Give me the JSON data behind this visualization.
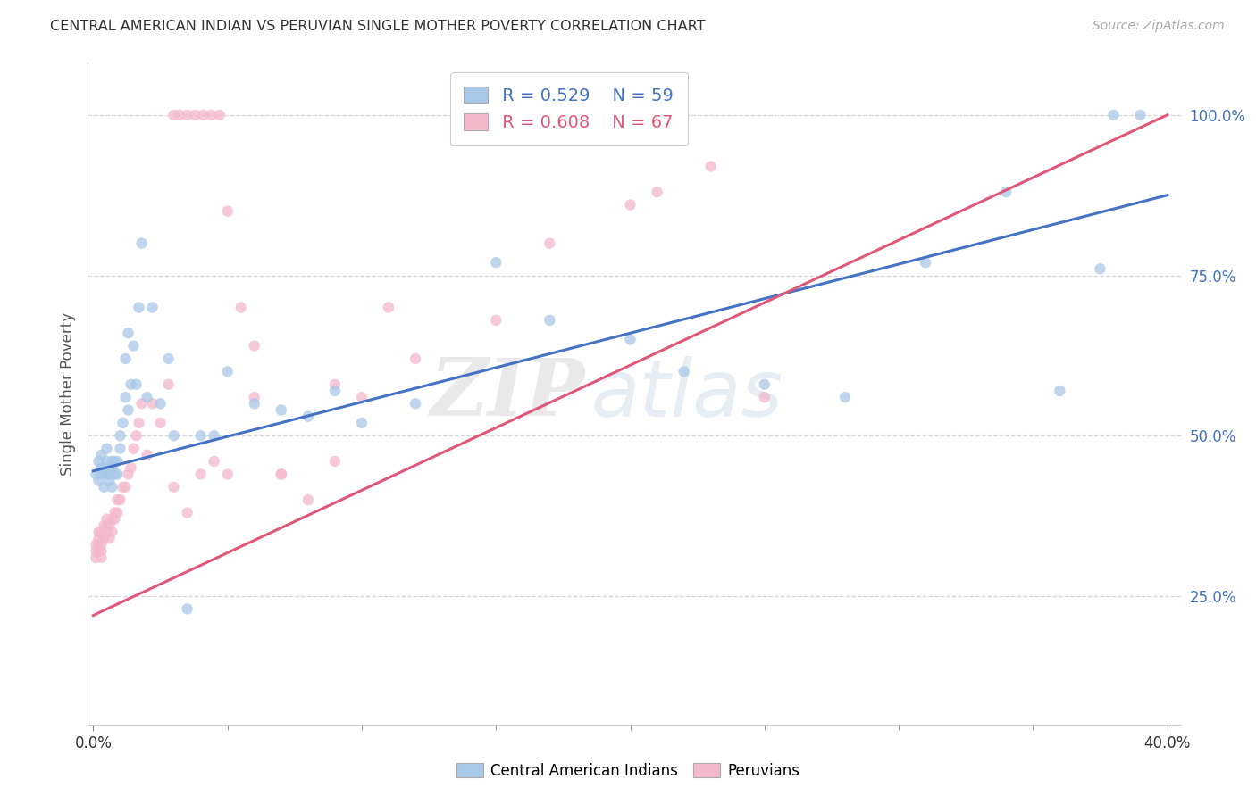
{
  "title": "CENTRAL AMERICAN INDIAN VS PERUVIAN SINGLE MOTHER POVERTY CORRELATION CHART",
  "source": "Source: ZipAtlas.com",
  "ylabel": "Single Mother Poverty",
  "ytick_labels": [
    "25.0%",
    "50.0%",
    "75.0%",
    "100.0%"
  ],
  "ytick_values": [
    0.25,
    0.5,
    0.75,
    1.0
  ],
  "xtick_labels": [
    "0.0%",
    "40.0%"
  ],
  "xtick_values": [
    0.0,
    0.4
  ],
  "xlim": [
    -0.002,
    0.405
  ],
  "ylim": [
    0.05,
    1.08
  ],
  "legend_blue_r": "R = 0.529",
  "legend_blue_n": "N = 59",
  "legend_pink_r": "R = 0.608",
  "legend_pink_n": "N = 67",
  "blue_color": "#a8c8e8",
  "pink_color": "#f4b8cb",
  "blue_line_color": "#4472c4",
  "pink_line_color": "#e05878",
  "watermark_zip": "ZIP",
  "watermark_atlas": "atlas",
  "blue_line_x0": 0.0,
  "blue_line_y0": 0.445,
  "blue_line_x1": 0.4,
  "blue_line_y1": 0.875,
  "pink_line_x0": 0.0,
  "pink_line_y0": 0.22,
  "pink_line_x1": 0.4,
  "pink_line_y1": 1.0,
  "blue_x": [
    0.001,
    0.002,
    0.002,
    0.003,
    0.003,
    0.003,
    0.004,
    0.004,
    0.005,
    0.005,
    0.005,
    0.006,
    0.006,
    0.007,
    0.007,
    0.007,
    0.008,
    0.008,
    0.009,
    0.009,
    0.01,
    0.01,
    0.011,
    0.012,
    0.012,
    0.013,
    0.013,
    0.014,
    0.015,
    0.016,
    0.017,
    0.018,
    0.02,
    0.022,
    0.025,
    0.028,
    0.03,
    0.035,
    0.04,
    0.045,
    0.05,
    0.06,
    0.07,
    0.08,
    0.09,
    0.1,
    0.12,
    0.15,
    0.17,
    0.2,
    0.22,
    0.25,
    0.28,
    0.31,
    0.34,
    0.36,
    0.375,
    0.38,
    0.39
  ],
  "blue_y": [
    0.44,
    0.43,
    0.46,
    0.44,
    0.47,
    0.45,
    0.42,
    0.45,
    0.44,
    0.48,
    0.46,
    0.43,
    0.44,
    0.42,
    0.45,
    0.46,
    0.44,
    0.46,
    0.44,
    0.46,
    0.48,
    0.5,
    0.52,
    0.56,
    0.62,
    0.54,
    0.66,
    0.58,
    0.64,
    0.58,
    0.7,
    0.8,
    0.56,
    0.7,
    0.55,
    0.62,
    0.5,
    0.23,
    0.5,
    0.5,
    0.6,
    0.55,
    0.54,
    0.53,
    0.57,
    0.52,
    0.55,
    0.77,
    0.68,
    0.65,
    0.6,
    0.58,
    0.56,
    0.77,
    0.88,
    0.57,
    0.76,
    1.0,
    1.0
  ],
  "pink_x": [
    0.001,
    0.001,
    0.001,
    0.002,
    0.002,
    0.002,
    0.002,
    0.003,
    0.003,
    0.003,
    0.003,
    0.004,
    0.004,
    0.005,
    0.005,
    0.005,
    0.006,
    0.006,
    0.007,
    0.007,
    0.008,
    0.008,
    0.009,
    0.009,
    0.01,
    0.011,
    0.012,
    0.013,
    0.014,
    0.015,
    0.016,
    0.017,
    0.018,
    0.02,
    0.022,
    0.025,
    0.028,
    0.03,
    0.035,
    0.04,
    0.045,
    0.05,
    0.06,
    0.07,
    0.08,
    0.09,
    0.1,
    0.12,
    0.15,
    0.17,
    0.2,
    0.21,
    0.23,
    0.25,
    0.03,
    0.032,
    0.035,
    0.038,
    0.041,
    0.044,
    0.047,
    0.05,
    0.055,
    0.06,
    0.07,
    0.09,
    0.11
  ],
  "pink_y": [
    0.33,
    0.32,
    0.31,
    0.33,
    0.32,
    0.35,
    0.34,
    0.35,
    0.32,
    0.33,
    0.31,
    0.36,
    0.34,
    0.37,
    0.35,
    0.36,
    0.36,
    0.34,
    0.37,
    0.35,
    0.38,
    0.37,
    0.38,
    0.4,
    0.4,
    0.42,
    0.42,
    0.44,
    0.45,
    0.48,
    0.5,
    0.52,
    0.55,
    0.47,
    0.55,
    0.52,
    0.58,
    0.42,
    0.38,
    0.44,
    0.46,
    0.44,
    0.56,
    0.44,
    0.4,
    0.46,
    0.56,
    0.62,
    0.68,
    0.8,
    0.86,
    0.88,
    0.92,
    0.56,
    1.0,
    1.0,
    1.0,
    1.0,
    1.0,
    1.0,
    1.0,
    0.85,
    0.7,
    0.64,
    0.44,
    0.58,
    0.7
  ]
}
